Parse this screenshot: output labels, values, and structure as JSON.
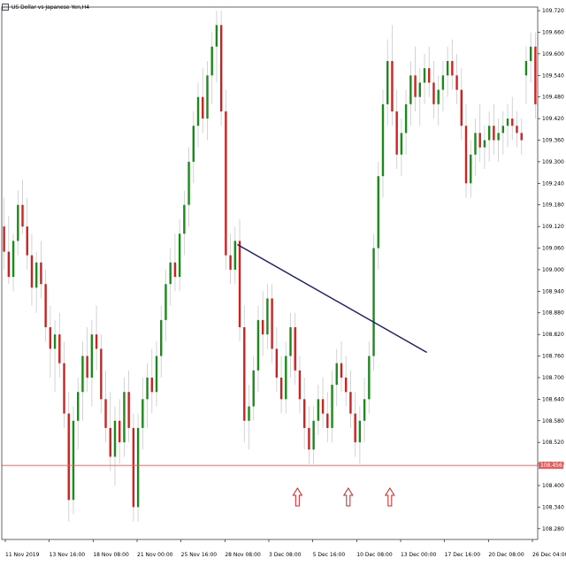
{
  "chart_title": "US Dollar vs Japanese Yen,H4",
  "chart_data": {
    "type": "candlestick",
    "title": "US Dollar vs Japanese Yen,H4",
    "y_ticks": [
      "109.720",
      "109.660",
      "109.600",
      "109.540",
      "109.480",
      "109.420",
      "109.360",
      "109.300",
      "109.240",
      "109.180",
      "109.120",
      "109.060",
      "109.000",
      "108.940",
      "108.880",
      "108.820",
      "108.760",
      "108.700",
      "108.640",
      "108.580",
      "108.520",
      "108.460",
      "108.400",
      "108.340",
      "108.280"
    ],
    "x_ticks": [
      "11 Nov 2019",
      "13 Nov 16:00",
      "18 Nov 08:00",
      "21 Nov 00:00",
      "25 Nov 16:00",
      "28 Nov 08:00",
      "3 Dec 08:00",
      "5 Dec 16:00",
      "10 Dec 08:00",
      "13 Dec 00:00",
      "17 Dec 16:00",
      "20 Dec 08:00",
      "26 Dec 04:00"
    ],
    "ylim": [
      108.25,
      109.73
    ],
    "current_price_label": "108.456",
    "horizontal_line_price": 108.456,
    "trendline": [
      {
        "x": 50.5,
        "y": 109.07
      },
      {
        "x": 91.5,
        "y": 108.77
      }
    ],
    "arrows": [
      {
        "x": 63.5,
        "label": "up-arrow"
      },
      {
        "x": 74.5,
        "label": "up-arrow"
      },
      {
        "x": 83.5,
        "label": "up-arrow"
      }
    ],
    "up_color": "#1a8a1a",
    "down_color": "#cc2222",
    "trend_color": "#1a1a6e",
    "line_color": "#e06060",
    "candles": [
      [
        109.12,
        109.2,
        109.0,
        109.05
      ],
      [
        109.05,
        109.15,
        108.96,
        108.98
      ],
      [
        108.98,
        109.1,
        108.94,
        109.08
      ],
      [
        109.08,
        109.22,
        109.04,
        109.18
      ],
      [
        109.18,
        109.25,
        109.1,
        109.12
      ],
      [
        109.12,
        109.2,
        109.0,
        109.04
      ],
      [
        109.04,
        109.1,
        108.9,
        108.95
      ],
      [
        108.95,
        109.05,
        108.88,
        109.02
      ],
      [
        109.02,
        109.08,
        108.92,
        108.96
      ],
      [
        108.96,
        109.0,
        108.8,
        108.84
      ],
      [
        108.84,
        108.9,
        108.7,
        108.78
      ],
      [
        108.78,
        108.86,
        108.66,
        108.82
      ],
      [
        108.82,
        108.88,
        108.7,
        108.74
      ],
      [
        108.74,
        108.8,
        108.56,
        108.6
      ],
      [
        108.6,
        108.66,
        108.3,
        108.36
      ],
      [
        108.36,
        108.62,
        108.32,
        108.58
      ],
      [
        108.58,
        108.7,
        108.5,
        108.66
      ],
      [
        108.66,
        108.8,
        108.58,
        108.76
      ],
      [
        108.76,
        108.84,
        108.66,
        108.7
      ],
      [
        108.7,
        108.86,
        108.62,
        108.82
      ],
      [
        108.82,
        108.9,
        108.72,
        108.78
      ],
      [
        108.78,
        108.82,
        108.6,
        108.64
      ],
      [
        108.64,
        108.72,
        108.52,
        108.56
      ],
      [
        108.56,
        108.66,
        108.44,
        108.48
      ],
      [
        108.48,
        108.62,
        108.4,
        108.58
      ],
      [
        108.58,
        108.64,
        108.46,
        108.52
      ],
      [
        108.52,
        108.7,
        108.48,
        108.66
      ],
      [
        108.66,
        108.72,
        108.52,
        108.56
      ],
      [
        108.56,
        108.6,
        108.3,
        108.34
      ],
      [
        108.34,
        108.6,
        108.3,
        108.56
      ],
      [
        108.56,
        108.7,
        108.5,
        108.64
      ],
      [
        108.64,
        108.74,
        108.56,
        108.7
      ],
      [
        108.7,
        108.78,
        108.6,
        108.66
      ],
      [
        108.66,
        108.8,
        108.62,
        108.76
      ],
      [
        108.76,
        108.9,
        108.7,
        108.86
      ],
      [
        108.86,
        109.0,
        108.8,
        108.96
      ],
      [
        108.96,
        109.06,
        108.9,
        109.02
      ],
      [
        109.02,
        109.1,
        108.94,
        108.98
      ],
      [
        108.98,
        109.14,
        108.94,
        109.1
      ],
      [
        109.1,
        109.22,
        109.04,
        109.18
      ],
      [
        109.18,
        109.34,
        109.12,
        109.3
      ],
      [
        109.3,
        109.44,
        109.24,
        109.4
      ],
      [
        109.4,
        109.52,
        109.34,
        109.48
      ],
      [
        109.48,
        109.56,
        109.38,
        109.42
      ],
      [
        109.42,
        109.58,
        109.36,
        109.54
      ],
      [
        109.54,
        109.66,
        109.46,
        109.62
      ],
      [
        109.62,
        109.72,
        109.52,
        109.68
      ],
      [
        109.68,
        109.72,
        109.4,
        109.44
      ],
      [
        109.44,
        109.5,
        109.0,
        109.04
      ],
      [
        109.04,
        109.1,
        108.96,
        109.0
      ],
      [
        109.0,
        109.12,
        108.96,
        109.08
      ],
      [
        109.08,
        109.14,
        108.8,
        108.84
      ],
      [
        108.84,
        108.9,
        108.52,
        108.58
      ],
      [
        108.58,
        108.68,
        108.5,
        108.62
      ],
      [
        108.62,
        108.76,
        108.58,
        108.72
      ],
      [
        108.72,
        108.9,
        108.66,
        108.86
      ],
      [
        108.86,
        108.94,
        108.76,
        108.82
      ],
      [
        108.82,
        108.96,
        108.78,
        108.92
      ],
      [
        108.92,
        108.96,
        108.74,
        108.78
      ],
      [
        108.78,
        108.84,
        108.66,
        108.7
      ],
      [
        108.7,
        108.76,
        108.6,
        108.64
      ],
      [
        108.64,
        108.8,
        108.6,
        108.76
      ],
      [
        108.76,
        108.88,
        108.7,
        108.84
      ],
      [
        108.84,
        108.88,
        108.68,
        108.72
      ],
      [
        108.72,
        108.76,
        108.6,
        108.64
      ],
      [
        108.64,
        108.7,
        108.5,
        108.56
      ],
      [
        108.56,
        108.62,
        108.46,
        108.5
      ],
      [
        108.5,
        108.62,
        108.46,
        108.58
      ],
      [
        108.58,
        108.68,
        108.54,
        108.64
      ],
      [
        108.64,
        108.7,
        108.56,
        108.6
      ],
      [
        108.6,
        108.66,
        108.52,
        108.56
      ],
      [
        108.56,
        108.72,
        108.52,
        108.68
      ],
      [
        108.68,
        108.78,
        108.62,
        108.74
      ],
      [
        108.74,
        108.8,
        108.66,
        108.7
      ],
      [
        108.7,
        108.76,
        108.62,
        108.66
      ],
      [
        108.66,
        108.72,
        108.56,
        108.6
      ],
      [
        108.6,
        108.66,
        108.48,
        108.52
      ],
      [
        108.52,
        108.62,
        108.46,
        108.58
      ],
      [
        108.58,
        108.7,
        108.52,
        108.64
      ],
      [
        108.64,
        108.8,
        108.6,
        108.76
      ],
      [
        108.76,
        109.1,
        108.72,
        109.06
      ],
      [
        109.06,
        109.3,
        109.0,
        109.26
      ],
      [
        109.26,
        109.5,
        109.2,
        109.46
      ],
      [
        109.46,
        109.64,
        109.4,
        109.58
      ],
      [
        109.58,
        109.68,
        109.4,
        109.44
      ],
      [
        109.44,
        109.5,
        109.28,
        109.32
      ],
      [
        109.32,
        109.42,
        109.26,
        109.38
      ],
      [
        109.38,
        109.5,
        109.32,
        109.46
      ],
      [
        109.46,
        109.58,
        109.4,
        109.54
      ],
      [
        109.54,
        109.62,
        109.44,
        109.48
      ],
      [
        109.48,
        109.56,
        109.4,
        109.52
      ],
      [
        109.52,
        109.6,
        109.46,
        109.56
      ],
      [
        109.56,
        109.62,
        109.48,
        109.52
      ],
      [
        109.52,
        109.58,
        109.42,
        109.46
      ],
      [
        109.46,
        109.54,
        109.4,
        109.5
      ],
      [
        109.5,
        109.58,
        109.44,
        109.54
      ],
      [
        109.54,
        109.62,
        109.48,
        109.58
      ],
      [
        109.58,
        109.64,
        109.5,
        109.54
      ],
      [
        109.54,
        109.6,
        109.46,
        109.5
      ],
      [
        109.5,
        109.56,
        109.36,
        109.4
      ],
      [
        109.4,
        109.46,
        109.2,
        109.24
      ],
      [
        109.24,
        109.36,
        109.2,
        109.32
      ],
      [
        109.32,
        109.42,
        109.26,
        109.38
      ],
      [
        109.38,
        109.46,
        109.3,
        109.34
      ],
      [
        109.34,
        109.4,
        109.28,
        109.36
      ],
      [
        109.36,
        109.44,
        109.3,
        109.4
      ],
      [
        109.4,
        109.46,
        109.32,
        109.36
      ],
      [
        109.36,
        109.42,
        109.3,
        109.38
      ],
      [
        109.38,
        109.44,
        109.32,
        109.4
      ],
      [
        109.4,
        109.46,
        109.34,
        109.42
      ],
      [
        109.42,
        109.48,
        109.36,
        109.4
      ],
      [
        109.4,
        109.44,
        109.34,
        109.38
      ],
      [
        109.38,
        109.42,
        109.32,
        109.36
      ],
      [
        109.54,
        109.62,
        109.46,
        109.58
      ],
      [
        109.58,
        109.66,
        109.52,
        109.62
      ],
      [
        109.62,
        109.66,
        109.42,
        109.46
      ]
    ]
  }
}
